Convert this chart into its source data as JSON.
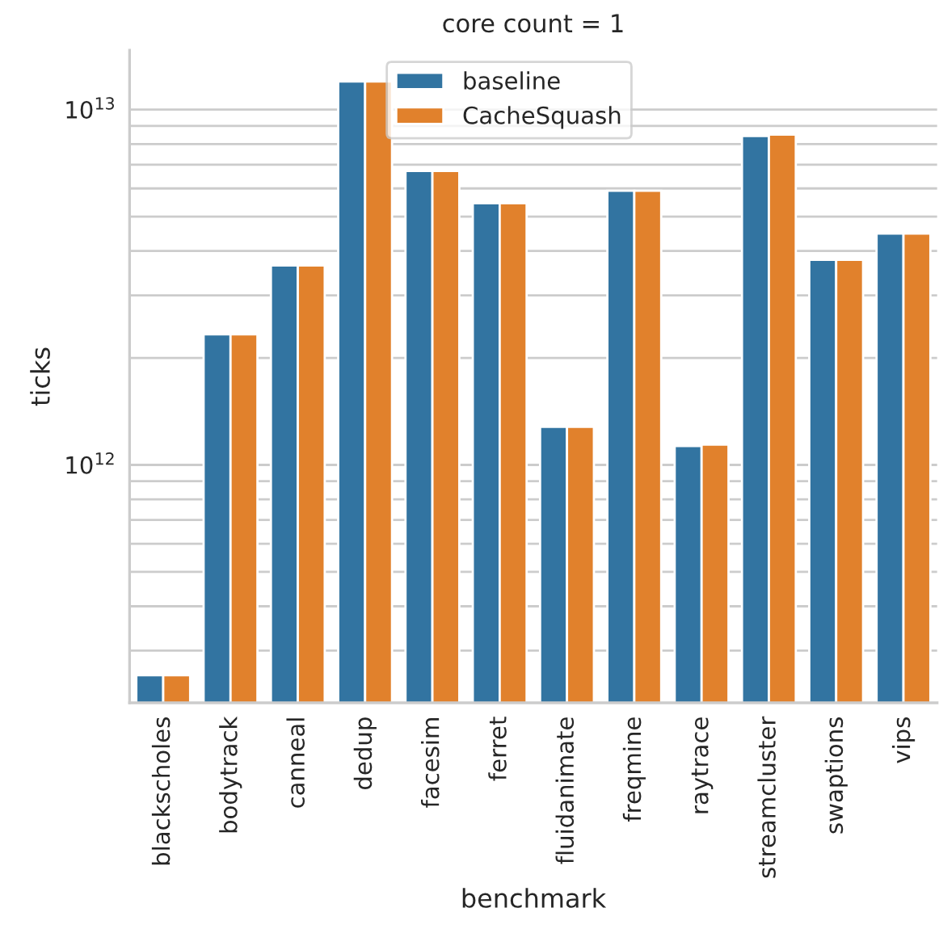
{
  "chart_data": {
    "type": "bar",
    "title": "core count = 1",
    "xlabel": "benchmark",
    "ylabel": "ticks",
    "categories": [
      "blackscholes",
      "bodytrack",
      "canneal",
      "dedup",
      "facesim",
      "ferret",
      "fluidanimate",
      "freqmine",
      "raytrace",
      "streamcluster",
      "swaptions",
      "vips"
    ],
    "series": [
      {
        "name": "baseline",
        "color": "#3274a1",
        "values": [
          256000000000.0,
          2330000000000.0,
          3640000000000.0,
          12000000000000.0,
          6720000000000.0,
          5450000000000.0,
          1280000000000.0,
          5910000000000.0,
          1130000000000.0,
          8430000000000.0,
          3780000000000.0,
          4480000000000.0
        ]
      },
      {
        "name": "CacheSquash",
        "color": "#e1812c",
        "values": [
          256000000000.0,
          2330000000000.0,
          3640000000000.0,
          12000000000000.0,
          6720000000000.0,
          5450000000000.0,
          1280000000000.0,
          5910000000000.0,
          1140000000000.0,
          8500000000000.0,
          3780000000000.0,
          4480000000000.0
        ]
      }
    ],
    "log": true,
    "ylim": [
      214000000000.0,
      14700000000000.0
    ],
    "yticks": [
      {
        "value": 300000000000.0,
        "label": null
      },
      {
        "value": 400000000000.0,
        "label": null
      },
      {
        "value": 500000000000.0,
        "label": null
      },
      {
        "value": 600000000000.0,
        "label": null
      },
      {
        "value": 700000000000.0,
        "label": null
      },
      {
        "value": 800000000000.0,
        "label": null
      },
      {
        "value": 900000000000.0,
        "label": null
      },
      {
        "value": 1000000000000.0,
        "label": "10$^{12}$"
      },
      {
        "value": 2000000000000.0,
        "label": null
      },
      {
        "value": 3000000000000.0,
        "label": null
      },
      {
        "value": 4000000000000.0,
        "label": null
      },
      {
        "value": 5000000000000.0,
        "label": null
      },
      {
        "value": 6000000000000.0,
        "label": null
      },
      {
        "value": 7000000000000.0,
        "label": null
      },
      {
        "value": 8000000000000.0,
        "label": null
      },
      {
        "value": 9000000000000.0,
        "label": null
      },
      {
        "value": 10000000000000.0,
        "label": "10$^{13}$"
      }
    ],
    "grid": "y",
    "legend": "top"
  }
}
